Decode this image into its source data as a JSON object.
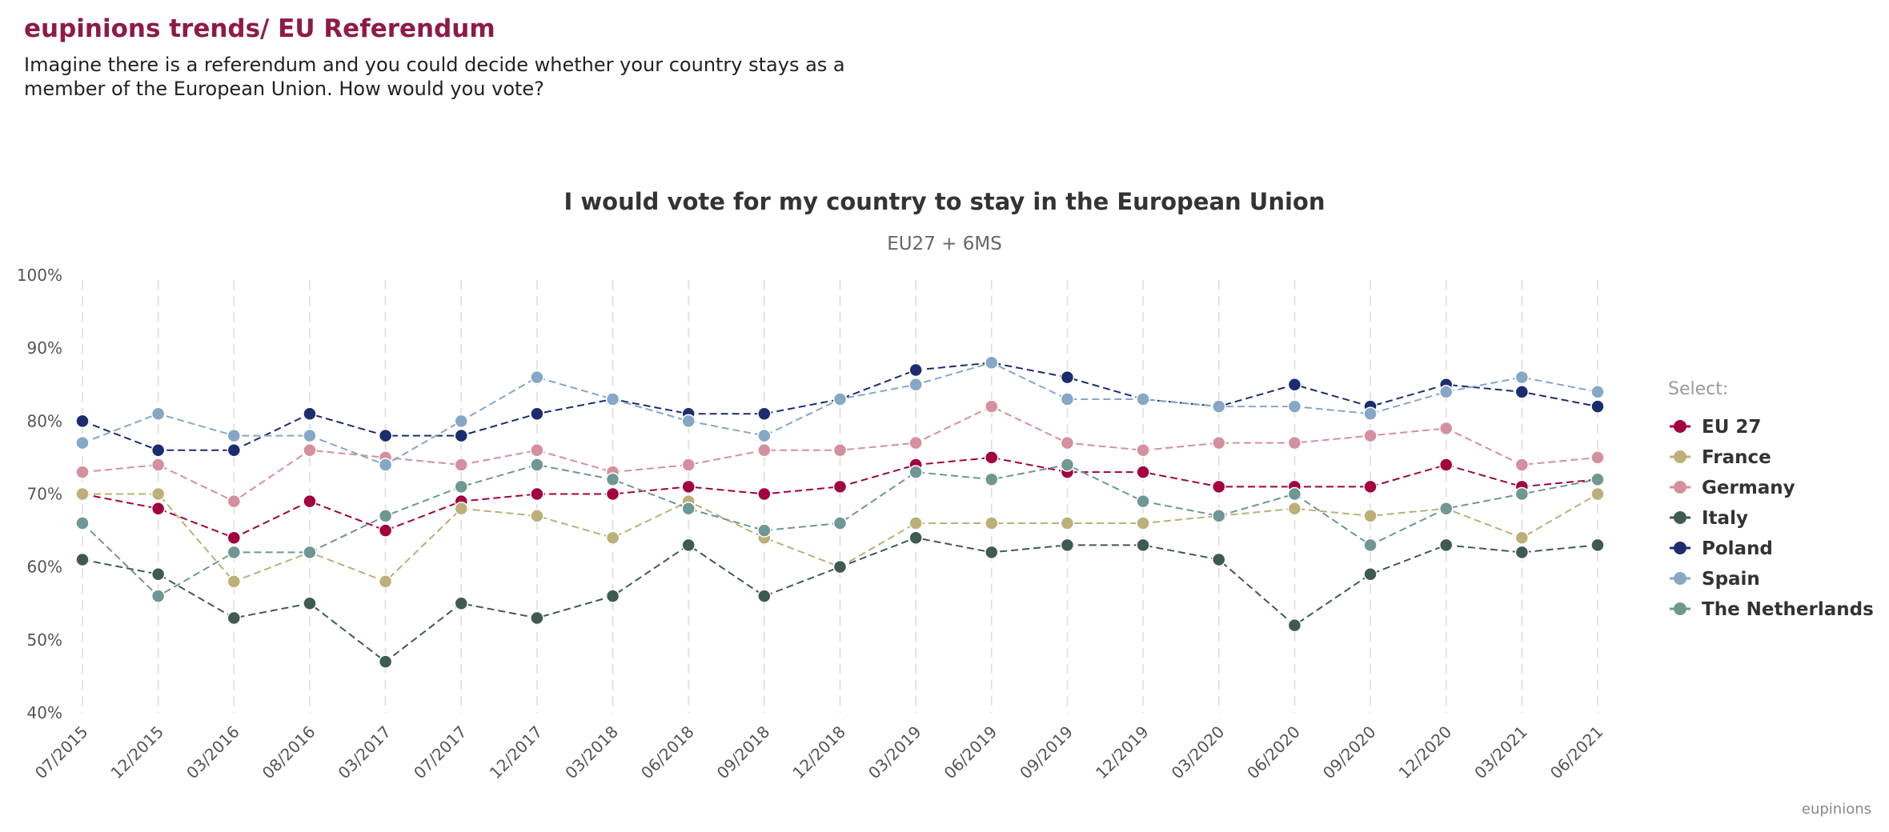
{
  "header": {
    "title": "eupinions trends/ EU Referendum",
    "question": "Imagine there is a referendum and you could decide whether your country stays as a member of the European Union. How would you vote?"
  },
  "footer": {
    "brand": "eupinions"
  },
  "chart_data": {
    "type": "line",
    "title": "I would vote for my country to stay in the European Union",
    "subtitle": "EU27 + 6MS",
    "xlabel": "",
    "ylabel": "",
    "ylim": [
      40,
      100
    ],
    "y_ticks": [
      "40%",
      "50%",
      "60%",
      "70%",
      "80%",
      "90%",
      "100%"
    ],
    "grid": "vertical dashed",
    "legend": {
      "title": "Select:",
      "position": "right"
    },
    "categories": [
      "07/2015",
      "12/2015",
      "03/2016",
      "08/2016",
      "03/2017",
      "07/2017",
      "12/2017",
      "03/2018",
      "06/2018",
      "09/2018",
      "12/2018",
      "03/2019",
      "06/2019",
      "09/2019",
      "12/2019",
      "03/2020",
      "06/2020",
      "09/2020",
      "12/2020",
      "03/2021",
      "06/2021"
    ],
    "series": [
      {
        "name": "EU 27",
        "color": "#a3003f",
        "values": [
          70,
          68,
          64,
          69,
          65,
          69,
          70,
          70,
          71,
          70,
          71,
          74,
          75,
          73,
          73,
          71,
          71,
          71,
          74,
          71,
          72
        ]
      },
      {
        "name": "France",
        "color": "#bcb078",
        "values": [
          70,
          70,
          58,
          62,
          58,
          68,
          67,
          64,
          69,
          64,
          60,
          66,
          66,
          66,
          66,
          67,
          68,
          67,
          68,
          64,
          70
        ]
      },
      {
        "name": "Germany",
        "color": "#d4909e",
        "values": [
          73,
          74,
          69,
          76,
          75,
          74,
          76,
          73,
          74,
          76,
          76,
          77,
          82,
          77,
          76,
          77,
          77,
          78,
          79,
          74,
          75
        ]
      },
      {
        "name": "Italy",
        "color": "#3f5a55",
        "values": [
          61,
          59,
          53,
          55,
          47,
          55,
          53,
          56,
          63,
          56,
          60,
          64,
          62,
          63,
          63,
          61,
          52,
          59,
          63,
          62,
          63
        ]
      },
      {
        "name": "Poland",
        "color": "#1b2d6e",
        "values": [
          80,
          76,
          76,
          81,
          78,
          78,
          81,
          83,
          81,
          81,
          83,
          87,
          88,
          86,
          83,
          82,
          85,
          82,
          85,
          84,
          82
        ]
      },
      {
        "name": "Spain",
        "color": "#86a7c6",
        "values": [
          77,
          81,
          78,
          78,
          74,
          80,
          86,
          83,
          80,
          78,
          83,
          85,
          88,
          83,
          83,
          82,
          82,
          81,
          84,
          86,
          84
        ]
      },
      {
        "name": "The Netherlands",
        "color": "#6f9793",
        "values": [
          66,
          56,
          62,
          62,
          67,
          71,
          74,
          72,
          68,
          65,
          66,
          73,
          72,
          74,
          69,
          67,
          70,
          63,
          68,
          70,
          72
        ]
      }
    ]
  }
}
